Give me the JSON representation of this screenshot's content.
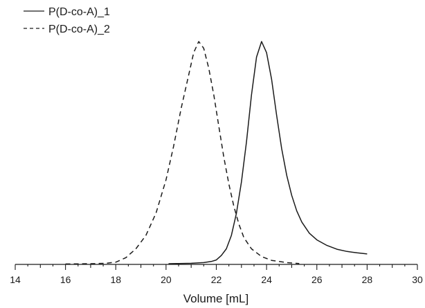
{
  "chart_data": {
    "type": "line",
    "title": "",
    "xlabel": "Volume [mL]",
    "ylabel": "",
    "xlim": [
      14,
      30
    ],
    "ylim": [
      0,
      1.0
    ],
    "x_ticks": [
      "14",
      "16",
      "18",
      "20",
      "22",
      "24",
      "26",
      "28",
      "30"
    ],
    "grid": false,
    "legend_position": "top-left",
    "colors": {
      "line": "#1a1a1a",
      "axis": "#1a1a1a"
    },
    "series": [
      {
        "name": "P(D-co-A)_1",
        "style": "solid",
        "points": [
          [
            20.1,
            0.003
          ],
          [
            20.5,
            0.004
          ],
          [
            21.0,
            0.005
          ],
          [
            21.5,
            0.008
          ],
          [
            21.8,
            0.013
          ],
          [
            22.0,
            0.02
          ],
          [
            22.2,
            0.04
          ],
          [
            22.4,
            0.07
          ],
          [
            22.6,
            0.13
          ],
          [
            22.8,
            0.23
          ],
          [
            23.0,
            0.37
          ],
          [
            23.2,
            0.55
          ],
          [
            23.4,
            0.76
          ],
          [
            23.6,
            0.93
          ],
          [
            23.8,
            1.0
          ],
          [
            24.0,
            0.95
          ],
          [
            24.2,
            0.83
          ],
          [
            24.4,
            0.67
          ],
          [
            24.6,
            0.52
          ],
          [
            24.8,
            0.4
          ],
          [
            25.0,
            0.31
          ],
          [
            25.2,
            0.24
          ],
          [
            25.4,
            0.19
          ],
          [
            25.7,
            0.14
          ],
          [
            26.0,
            0.11
          ],
          [
            26.4,
            0.085
          ],
          [
            26.8,
            0.068
          ],
          [
            27.2,
            0.058
          ],
          [
            27.6,
            0.052
          ],
          [
            28.0,
            0.047
          ]
        ]
      },
      {
        "name": "P(D-co-A)_2",
        "style": "dashed",
        "points": [
          [
            16.0,
            0.002
          ],
          [
            17.0,
            0.003
          ],
          [
            17.6,
            0.005
          ],
          [
            18.0,
            0.01
          ],
          [
            18.4,
            0.03
          ],
          [
            18.8,
            0.07
          ],
          [
            19.2,
            0.13
          ],
          [
            19.6,
            0.23
          ],
          [
            20.0,
            0.38
          ],
          [
            20.3,
            0.53
          ],
          [
            20.6,
            0.7
          ],
          [
            20.9,
            0.85
          ],
          [
            21.1,
            0.95
          ],
          [
            21.3,
            1.0
          ],
          [
            21.5,
            0.97
          ],
          [
            21.7,
            0.88
          ],
          [
            21.9,
            0.76
          ],
          [
            22.1,
            0.62
          ],
          [
            22.3,
            0.48
          ],
          [
            22.5,
            0.36
          ],
          [
            22.7,
            0.26
          ],
          [
            22.9,
            0.18
          ],
          [
            23.1,
            0.12
          ],
          [
            23.4,
            0.07
          ],
          [
            23.8,
            0.035
          ],
          [
            24.2,
            0.018
          ],
          [
            24.8,
            0.008
          ],
          [
            25.3,
            0.004
          ]
        ]
      }
    ]
  }
}
